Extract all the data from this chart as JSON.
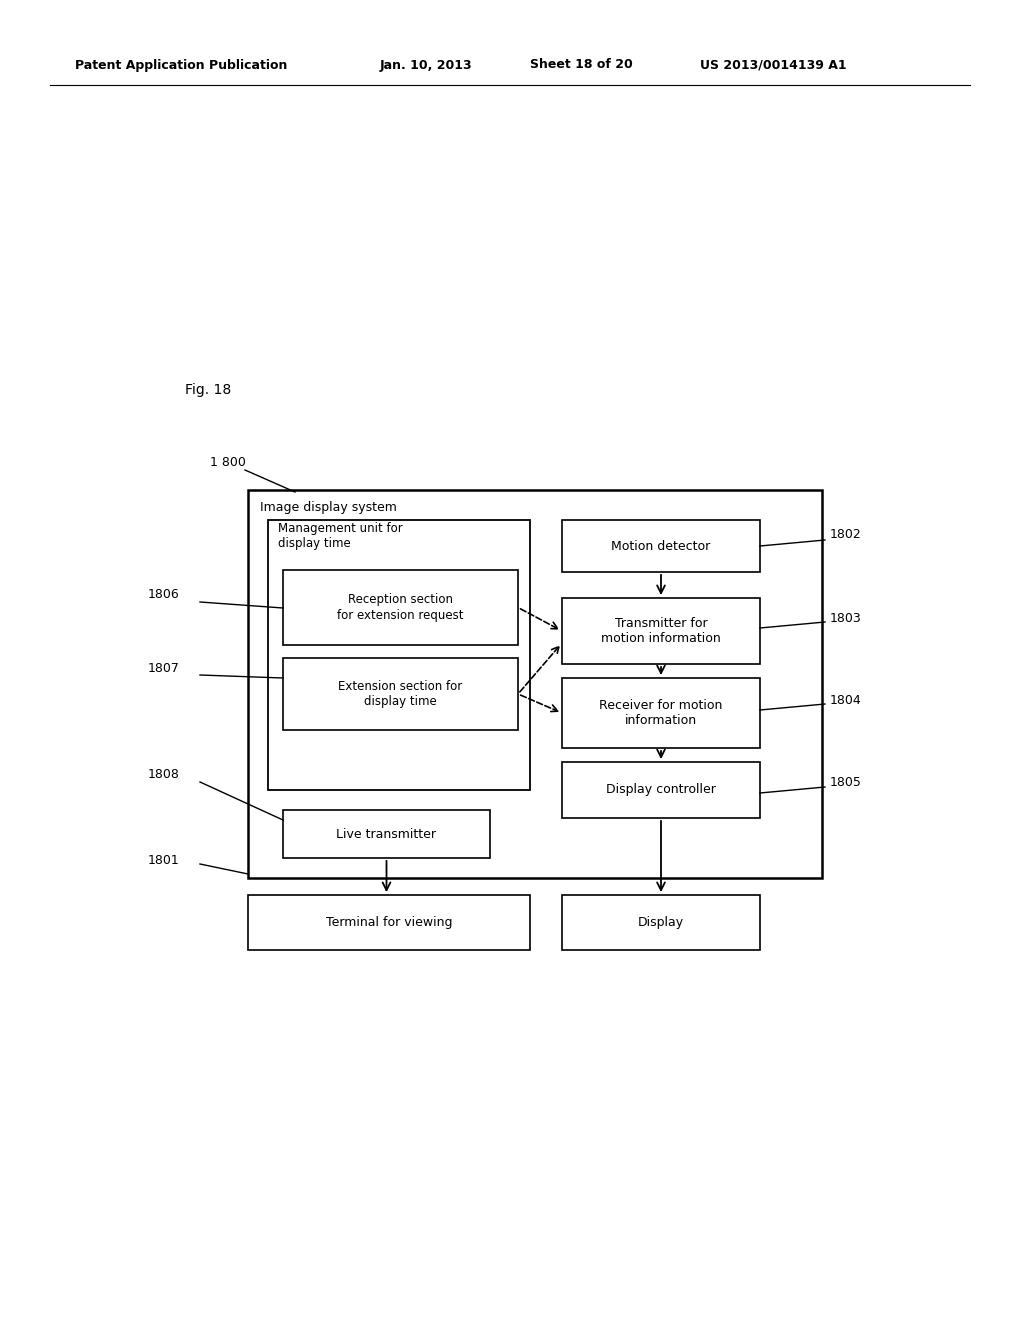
{
  "background_color": "#ffffff",
  "header_text": "Patent Application Publication",
  "header_date": "Jan. 10, 2013",
  "header_sheet": "Sheet 18 of 20",
  "header_patent": "US 2013/0014139 A1",
  "fig_label": "Fig. 18",
  "outer_box_label": "Image display system",
  "label_1800": "1 800",
  "label_1801": "1801",
  "label_1802": "1802",
  "label_1803": "1803",
  "label_1804": "1804",
  "label_1805": "1805",
  "label_1806": "1806",
  "label_1807": "1807",
  "label_1808": "1808",
  "mgmt_label": "Management unit for\ndisplay time",
  "reception_label": "Reception section\nfor extension request",
  "extension_label": "Extension section for\ndisplay time",
  "motion_detector_label": "Motion detector",
  "transmitter_label": "Transmitter for\nmotion information",
  "receiver_label": "Receiver for motion\ninformation",
  "display_ctrl_label": "Display controller",
  "live_trans_label": "Live transmitter",
  "terminal_label": "Terminal for viewing",
  "display_label": "Display"
}
